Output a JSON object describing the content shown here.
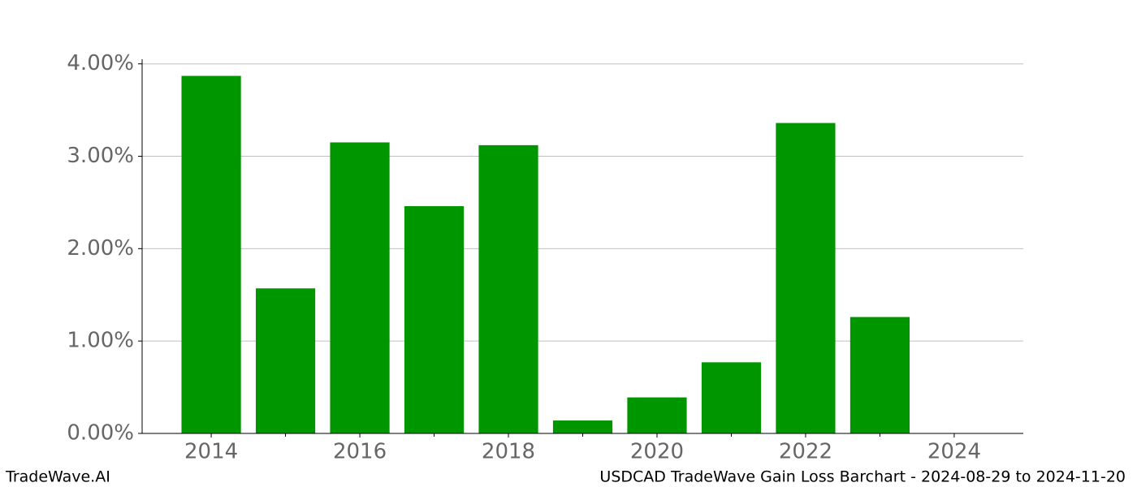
{
  "chart_data": {
    "type": "bar",
    "title": "USDCAD TradeWave Gain Loss Barchart - 2024-08-29 to 2024-11-20",
    "watermark": "TradeWave.AI",
    "x": [
      2014,
      2015,
      2016,
      2017,
      2018,
      2019,
      2020,
      2021,
      2022,
      2023
    ],
    "values": [
      3.87,
      1.57,
      3.15,
      2.46,
      3.12,
      0.14,
      0.39,
      0.77,
      3.36,
      1.26
    ],
    "color": "#009600",
    "xlim": [
      2013.07,
      2024.93
    ],
    "xticks": [
      2014,
      2016,
      2018,
      2020,
      2022,
      2024
    ],
    "xminorticks": [
      2015,
      2017,
      2019,
      2021,
      2023
    ],
    "ylim": [
      0,
      4.05
    ],
    "yticks": [
      {
        "value": 0,
        "label": "0.00%"
      },
      {
        "value": 1,
        "label": "1.00%"
      },
      {
        "value": 2,
        "label": "2.00%"
      },
      {
        "value": 3,
        "label": "3.00%"
      },
      {
        "value": 4,
        "label": "4.00%"
      }
    ],
    "grid": true
  }
}
